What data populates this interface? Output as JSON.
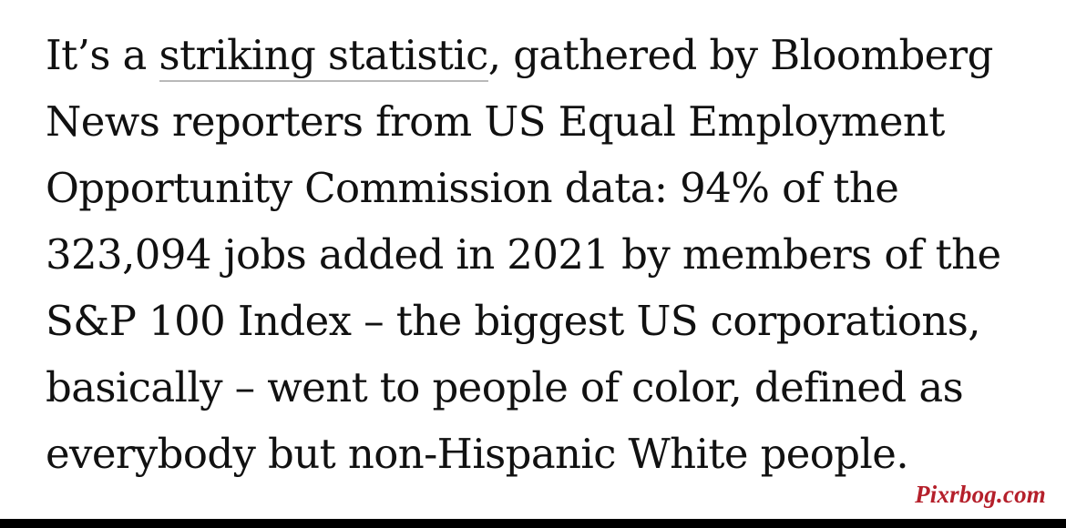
{
  "article": {
    "lines": [
      {
        "pre": "It’s a ",
        "link": "striking statistic",
        "post": ", gathered by Bloomberg"
      },
      {
        "text": "News reporters from US Equal Employment"
      },
      {
        "text": "Opportunity Commission data: 94% of the"
      },
      {
        "text": "323,094 jobs added in 2021 by members of the"
      },
      {
        "text": "S&P 100 Index – the biggest US corporations,"
      },
      {
        "text": "basically – went to people of color, defined as"
      },
      {
        "text": "everybody but non-Hispanic White people."
      }
    ]
  },
  "watermark": {
    "text": "Pixrbog.com",
    "color": "#b5202b"
  },
  "colors": {
    "text": "#111111",
    "link_underline": "#b9b9b9",
    "background": "#ffffff",
    "bottom_bar": "#000000"
  }
}
